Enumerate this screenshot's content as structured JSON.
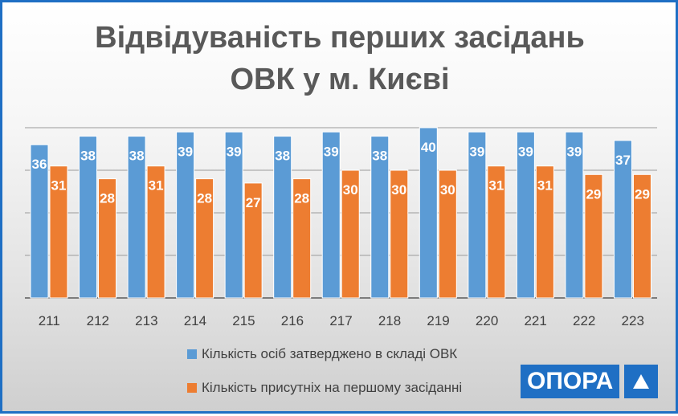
{
  "chart_data": {
    "type": "bar",
    "title": [
      "Відвідуваність перших засідань",
      "ОВК у м. Києві"
    ],
    "categories": [
      "211",
      "212",
      "213",
      "214",
      "215",
      "216",
      "217",
      "218",
      "219",
      "220",
      "221",
      "222",
      "223"
    ],
    "series": [
      {
        "name": "Кількість осіб затверджено в складі ОВК",
        "color": "#5b9bd5",
        "values": [
          36,
          38,
          38,
          39,
          39,
          38,
          39,
          38,
          40,
          39,
          39,
          39,
          37
        ]
      },
      {
        "name": "Кількість присутніх на першому засіданні",
        "color": "#ed7d31",
        "values": [
          31,
          28,
          31,
          28,
          27,
          28,
          30,
          30,
          30,
          31,
          31,
          29,
          29
        ]
      }
    ],
    "ylim": [
      0,
      40
    ],
    "grid": true,
    "data_labels": true,
    "legend_position": "bottom"
  },
  "logo": {
    "text": "ОПОРА",
    "icon": "triangle-icon"
  }
}
